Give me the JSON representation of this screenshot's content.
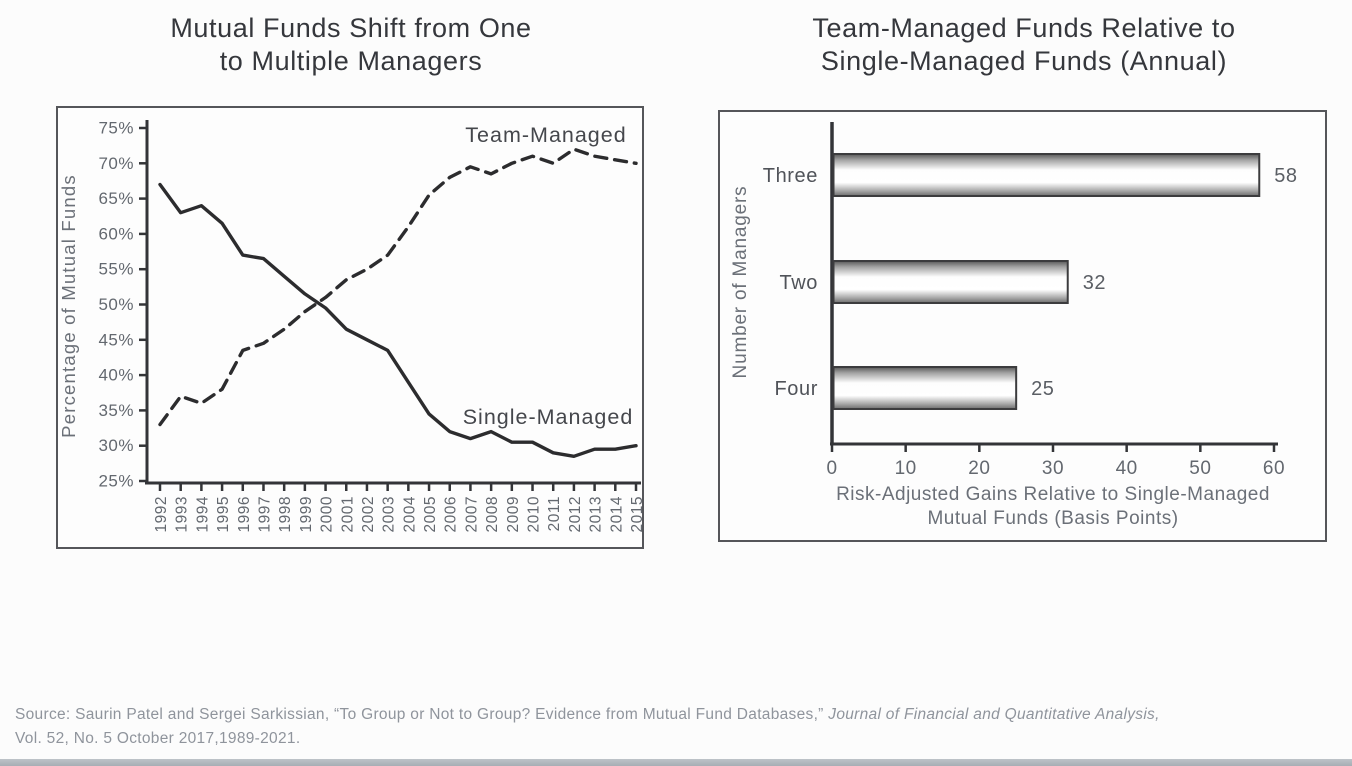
{
  "header": {
    "left_title_lines": [
      "Mutual Funds Shift from One",
      "to Multiple Managers"
    ],
    "right_title_lines": [
      "Team-Managed Funds Relative to",
      "Single-Managed Funds (Annual)"
    ]
  },
  "colors": {
    "ink": "#2c2c2e",
    "axis": "#333438",
    "tick_label": "#63686f",
    "axis_title": "#6b7078",
    "series_label": "#45474c",
    "category_label": "#505359",
    "value_label": "#5a5e64",
    "bar_edge": "#3c3c3e"
  },
  "chart_data": [
    {
      "type": "line",
      "title": "Mutual Funds Shift from One to Multiple Managers",
      "ylabel": "Percentage of Mutual Funds",
      "ylim": [
        25,
        75
      ],
      "ytick_step": 5,
      "ytick_suffix": "%",
      "grid": false,
      "legend": "inline-labels",
      "x": [
        "1992",
        "1993",
        "1994",
        "1995",
        "1996",
        "1997",
        "1998",
        "1999",
        "2000",
        "2001",
        "2002",
        "2003",
        "2004",
        "2005",
        "2006",
        "2007",
        "2008",
        "2009",
        "2010",
        "2011",
        "2012",
        "2013",
        "2014",
        "2015"
      ],
      "series": [
        {
          "name": "Single-Managed",
          "line_style": "solid",
          "values": [
            67,
            63,
            64,
            61.5,
            57,
            56.5,
            54,
            51.5,
            49.5,
            46.5,
            45,
            43.5,
            39,
            34.5,
            32,
            31,
            32,
            30.5,
            30.5,
            29,
            28.5,
            29.5,
            29.5,
            30
          ]
        },
        {
          "name": "Team-Managed",
          "line_style": "dashed",
          "values": [
            33,
            37,
            36,
            38,
            43.5,
            44.5,
            46.5,
            49,
            51,
            53.5,
            55,
            57,
            61,
            65.5,
            68,
            69.5,
            68.5,
            70,
            71,
            70,
            72,
            71,
            70.5,
            70
          ]
        }
      ]
    },
    {
      "type": "bar",
      "orientation": "horizontal",
      "title": "Team-Managed Funds Relative to Single-Managed Funds (Annual)",
      "categories": [
        "Three",
        "Two",
        "Four"
      ],
      "values": [
        58,
        32,
        25
      ],
      "xlim": [
        0,
        60
      ],
      "xticks": [
        0,
        10,
        20,
        30,
        40,
        50,
        60
      ],
      "xlabel": "Risk-Adjusted Gains Relative to Single-Managed Mutual Funds (Basis Points)",
      "xlabel_lines": [
        "Risk-Adjusted Gains Relative to Single-Managed",
        "Mutual Funds (Basis Points)"
      ],
      "ylabel": "Number of Managers",
      "value_labels": true,
      "bar_fill": "white-tube-gradient",
      "grid": false
    }
  ],
  "source": {
    "prefix": "Source: Saurin Patel and Sergei Sarkissian, “To Group or Not to Group? Evidence from Mutual Fund Databases,” ",
    "journal_italic": "Journal of Financial and Quantitative Analysis,",
    "line2": "Vol. 52, No. 5  October 2017,1989-2021."
  }
}
